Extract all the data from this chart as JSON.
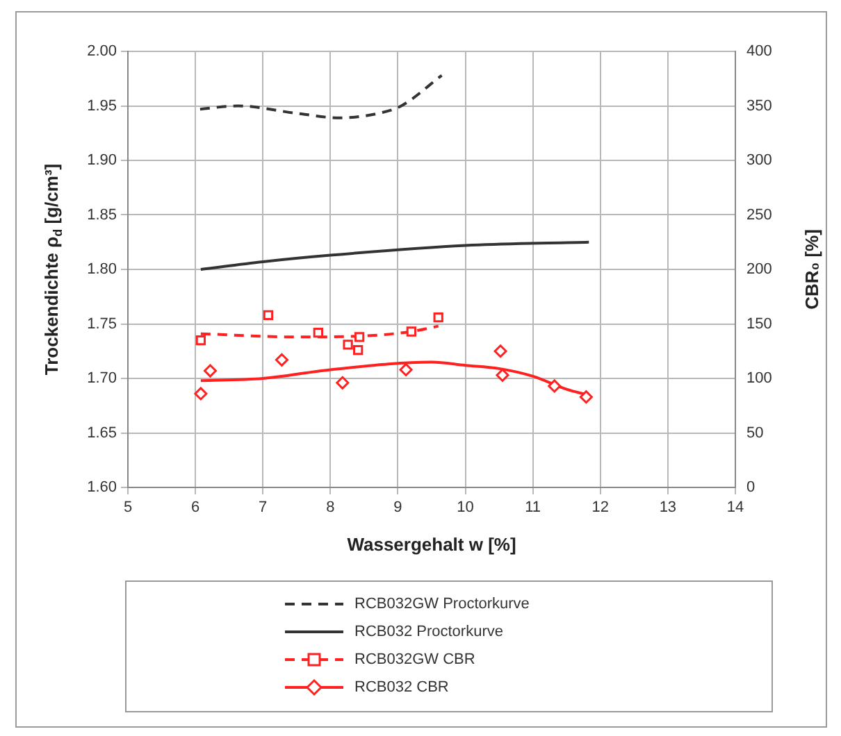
{
  "chart_data": {
    "type": "scatter",
    "xlabel": "Wassergehalt w [%]",
    "ylabel": "Trockendichte ρ$_{d}$ [g/cm³]",
    "y2label": "CBR₀ [%]",
    "xlim": [
      5,
      14
    ],
    "xticks": [
      5,
      6,
      7,
      8,
      9,
      10,
      11,
      12,
      13,
      14
    ],
    "ylim": [
      1.6,
      2.0
    ],
    "yticks": [
      {
        "value": 1.6,
        "label": "1.60"
      },
      {
        "value": 1.65,
        "label": "1.65"
      },
      {
        "value": 1.7,
        "label": "1.70"
      },
      {
        "value": 1.75,
        "label": "1.75"
      },
      {
        "value": 1.8,
        "label": "1.80"
      },
      {
        "value": 1.85,
        "label": "1.85"
      },
      {
        "value": 1.9,
        "label": "1.90"
      },
      {
        "value": 1.95,
        "label": "1.95"
      },
      {
        "value": 2.0,
        "label": "2.00"
      }
    ],
    "y2lim": [
      0,
      400
    ],
    "y2ticks": [
      0,
      50,
      100,
      150,
      200,
      250,
      300,
      350,
      400
    ],
    "grid": true,
    "legend": "bottom",
    "series": [
      {
        "name": "RCB032GW Proctorkurve",
        "type": "line",
        "color": "#333333",
        "line_style": "dashed",
        "marker": "none",
        "x": [
          6.07,
          6.63,
          7.52,
          8.14,
          8.7,
          9.05,
          9.65
        ],
        "values": [
          1.947,
          1.95,
          1.943,
          1.939,
          1.943,
          1.95,
          1.978
        ]
      },
      {
        "name": "RCB032 Proctorkurve",
        "type": "line",
        "color": "#333333",
        "line_style": "solid",
        "marker": "none",
        "x": [
          6.08,
          7.0,
          8.0,
          10.0,
          11.83
        ],
        "values": [
          1.8,
          1.807,
          1.813,
          1.822,
          1.825
        ]
      },
      {
        "name": "RCB032GW CBR",
        "axis": "y2",
        "color": "#ff2020",
        "marker": "square",
        "line_style": "dashed",
        "x": [
          6.08,
          7.08,
          7.82,
          8.26,
          8.43,
          8.41,
          9.2,
          9.6
        ],
        "values": [
          135,
          158,
          142,
          131,
          138,
          126,
          143,
          156
        ]
      },
      {
        "type": "line",
        "axis": "y2",
        "color": "#ff2020",
        "line_style": "dashed",
        "marker": "none",
        "x": [
          6.08,
          7.5,
          8.5,
          9.2,
          9.6
        ],
        "values": [
          141,
          138,
          139,
          143,
          148
        ]
      },
      {
        "name": "RCB032 CBR",
        "axis": "y2",
        "color": "#ff2020",
        "marker": "diamond",
        "line_style": "solid",
        "x": [
          6.08,
          6.22,
          7.28,
          8.18,
          9.12,
          10.52,
          10.55,
          11.32,
          11.79
        ],
        "values": [
          86,
          107,
          117,
          96,
          108,
          125,
          103,
          93,
          83
        ]
      },
      {
        "type": "line",
        "axis": "y2",
        "color": "#ff2020",
        "line_style": "solid",
        "marker": "none",
        "x": [
          6.08,
          7.0,
          8.0,
          9.5,
          10.0,
          10.5,
          11.0,
          11.5,
          11.8
        ],
        "values": [
          98,
          100,
          108,
          115,
          112,
          109,
          102,
          90,
          85
        ]
      }
    ]
  }
}
